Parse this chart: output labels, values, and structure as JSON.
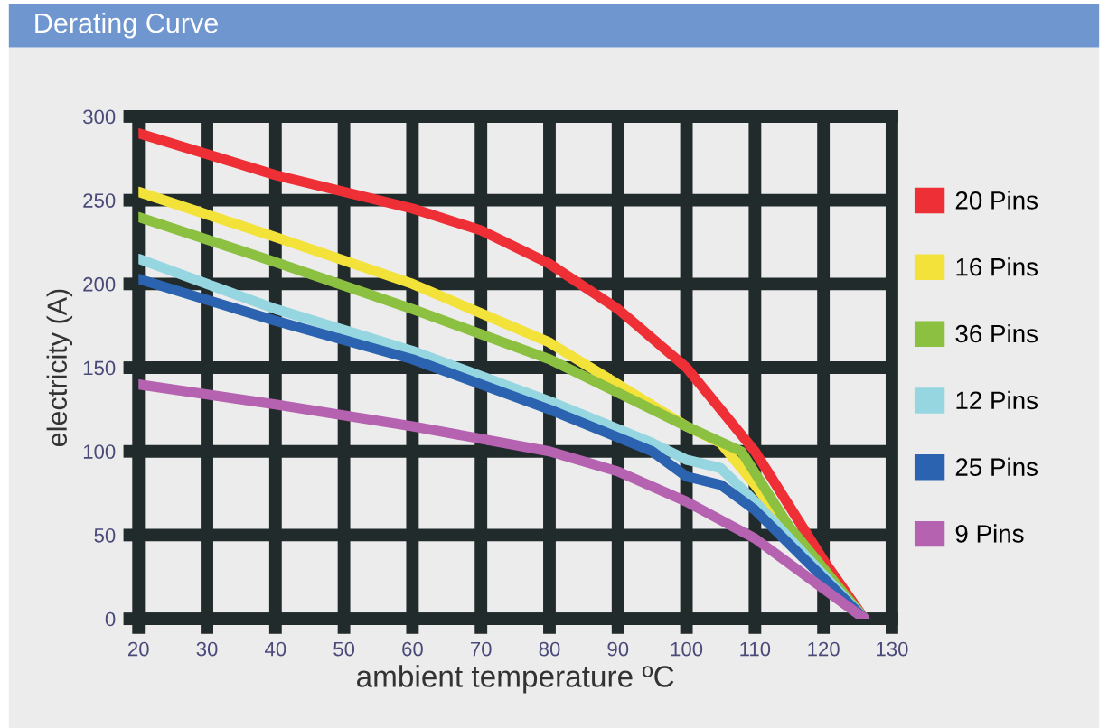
{
  "chart_data": {
    "type": "line",
    "title": "Derating Curve",
    "xlabel": "ambient temperature ºC",
    "ylabel": "electricity (A)",
    "xlim": [
      20,
      130
    ],
    "xticks": [
      20,
      30,
      40,
      50,
      60,
      70,
      80,
      90,
      100,
      110,
      120,
      130
    ],
    "ylim": [
      0,
      300
    ],
    "yticks": [
      0,
      50,
      100,
      150,
      200,
      250,
      300
    ],
    "grid": true,
    "legend": "right",
    "line_style": "solid",
    "marker": "none",
    "series": [
      {
        "name": "20 Pins",
        "color": "#ee2f36",
        "x": [
          20,
          40,
          60,
          70,
          80,
          90,
          100,
          110,
          120,
          126
        ],
        "values": [
          290,
          265,
          245,
          232,
          212,
          185,
          150,
          100,
          35,
          0
        ]
      },
      {
        "name": "16 Pins",
        "color": "#f2e23a",
        "x": [
          20,
          40,
          60,
          80,
          90,
          100,
          105,
          110,
          120,
          126
        ],
        "values": [
          255,
          228,
          200,
          165,
          140,
          115,
          105,
          80,
          25,
          0
        ]
      },
      {
        "name": "36 Pins",
        "color": "#8cc040",
        "x": [
          20,
          40,
          60,
          80,
          90,
          100,
          108,
          115,
          126
        ],
        "values": [
          240,
          213,
          185,
          155,
          135,
          115,
          100,
          55,
          0
        ]
      },
      {
        "name": "12 Pins",
        "color": "#96d6e0",
        "x": [
          20,
          40,
          60,
          80,
          95,
          100,
          105,
          110,
          126
        ],
        "values": [
          215,
          185,
          160,
          130,
          105,
          95,
          90,
          70,
          0
        ]
      },
      {
        "name": "25 Pins",
        "color": "#2c63b0",
        "x": [
          20,
          40,
          60,
          80,
          95,
          100,
          105,
          110,
          126
        ],
        "values": [
          203,
          178,
          155,
          125,
          100,
          85,
          80,
          65,
          0
        ]
      },
      {
        "name": "9 Pins",
        "color": "#b562b0",
        "x": [
          20,
          40,
          60,
          80,
          90,
          100,
          110,
          126
        ],
        "values": [
          140,
          128,
          115,
          100,
          88,
          70,
          48,
          0
        ]
      }
    ]
  }
}
